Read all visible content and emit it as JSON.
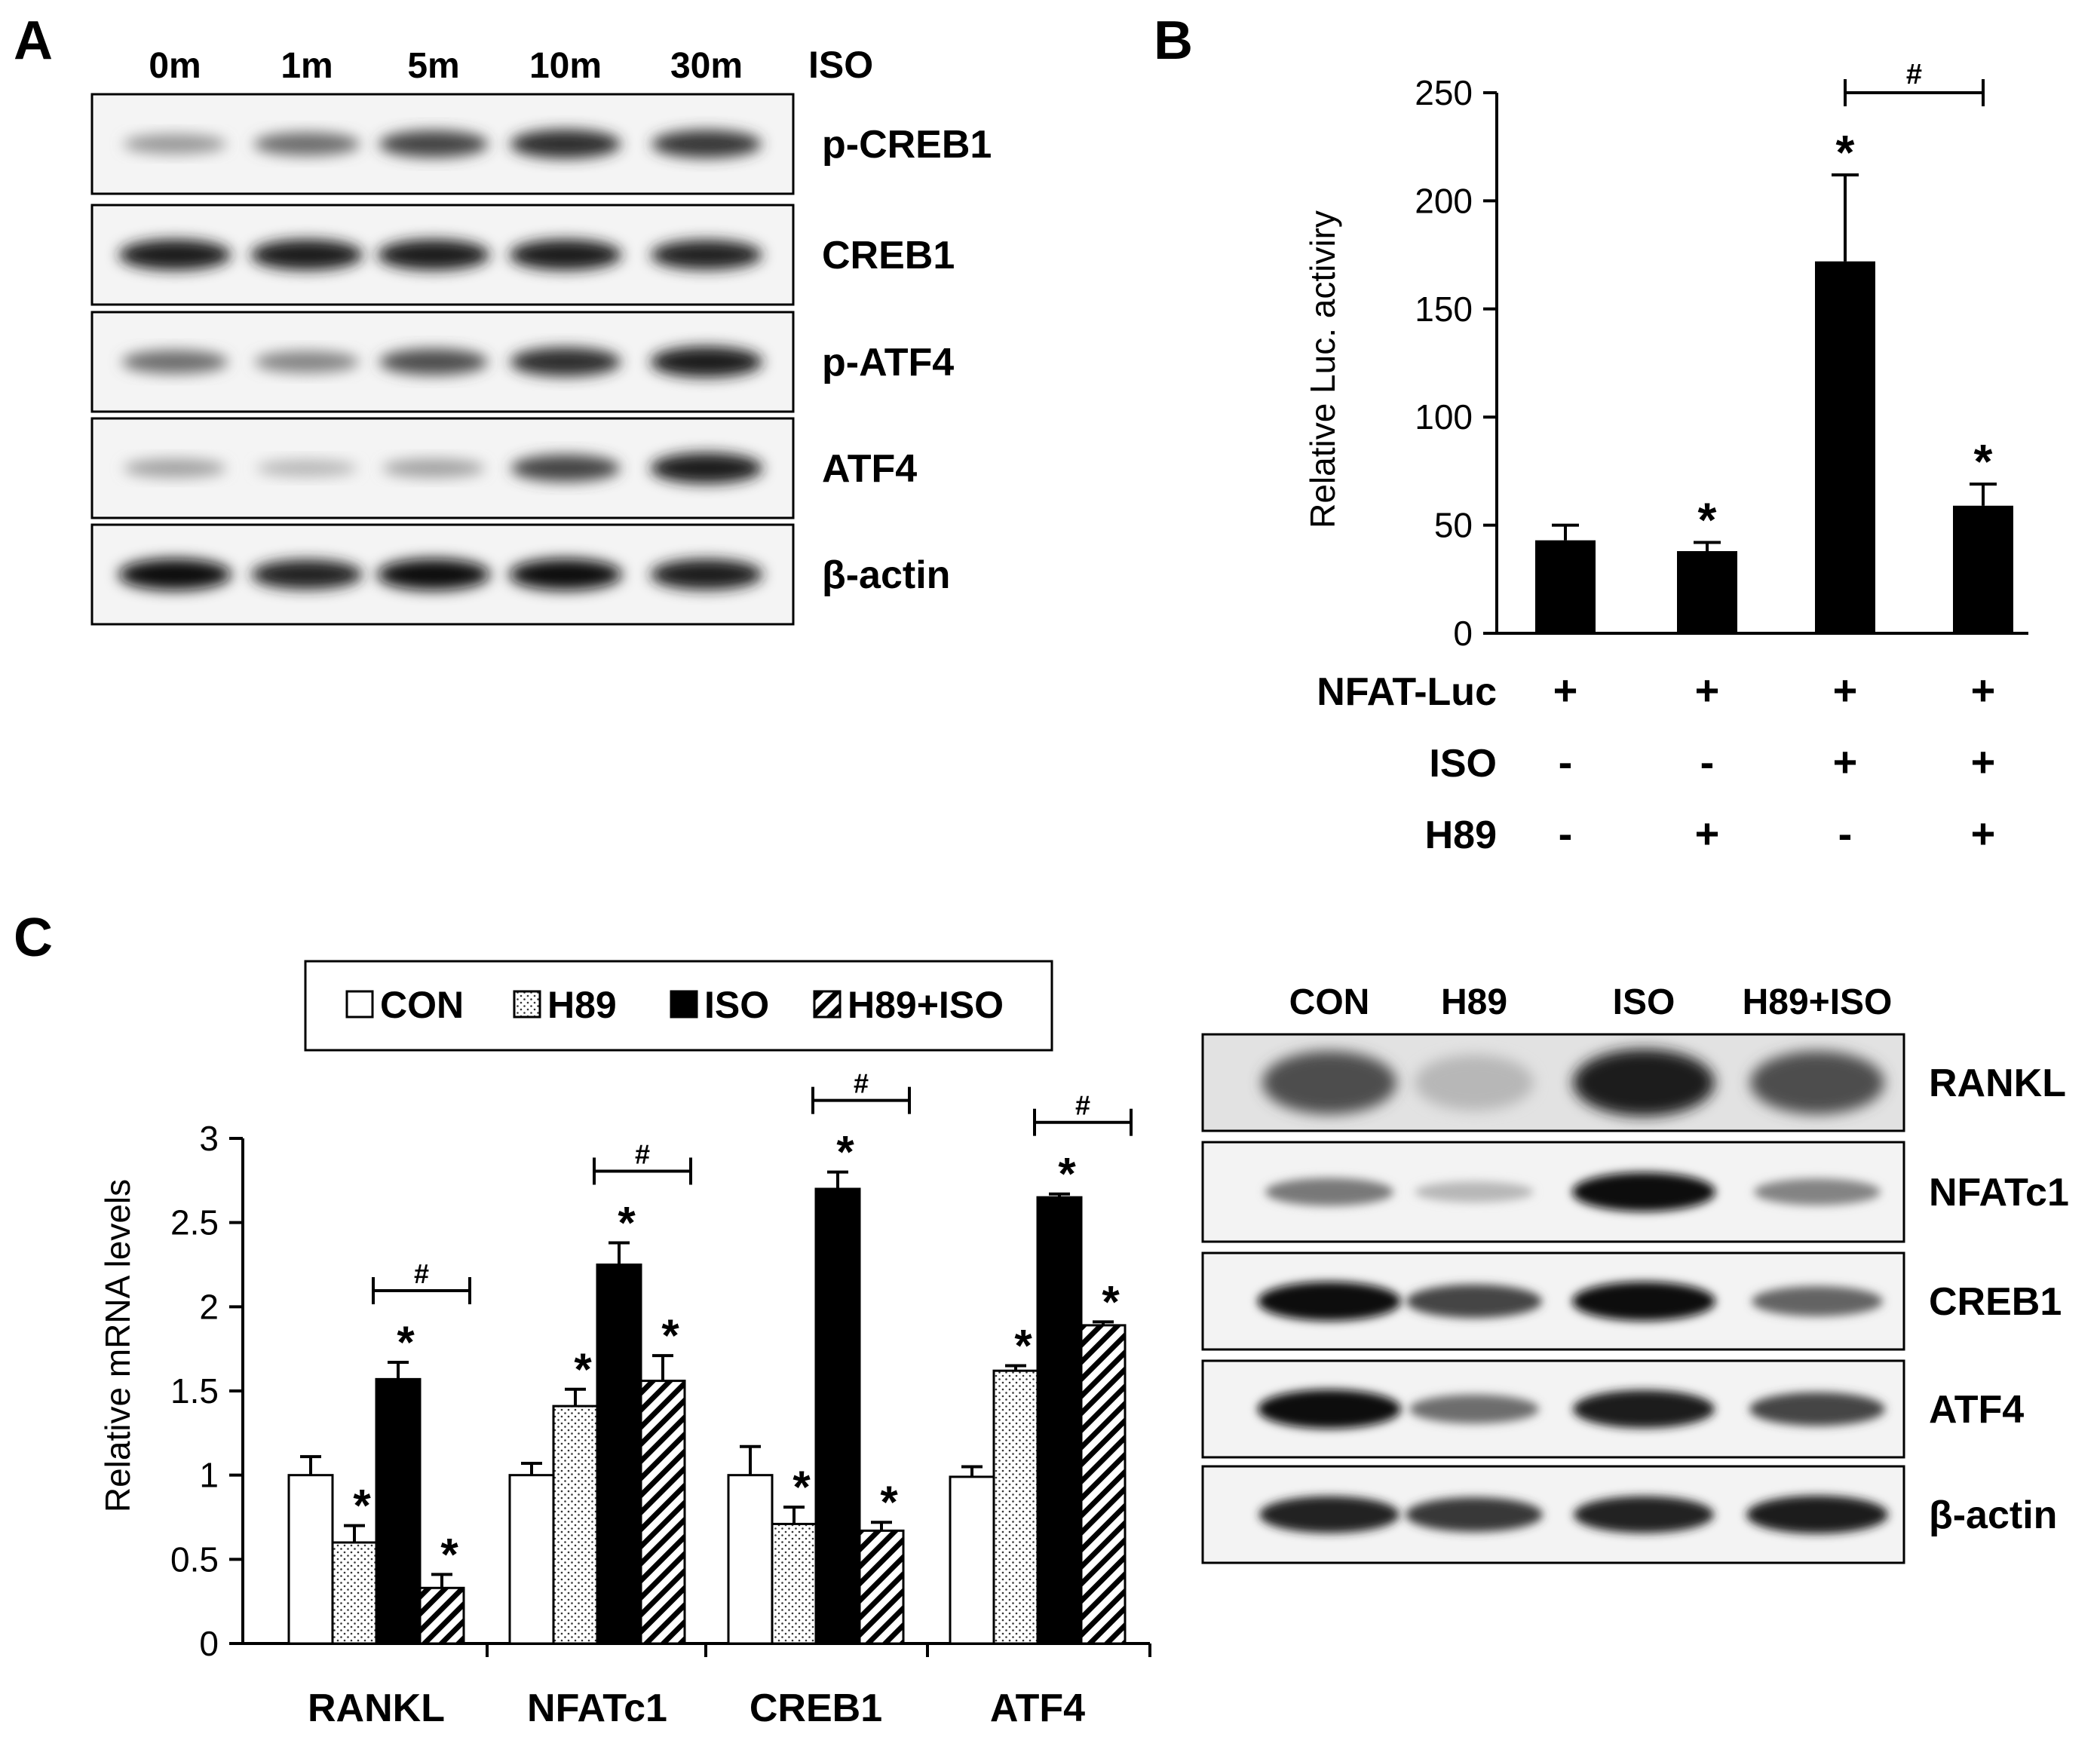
{
  "panels": {
    "a": {
      "letter": "A",
      "timepoints": [
        "0m",
        "1m",
        "5m",
        "10m",
        "30m"
      ],
      "treatment_label": "ISO",
      "blots": [
        {
          "label": "p-CREB1",
          "intensity": [
            0.35,
            0.55,
            0.75,
            0.85,
            0.8
          ]
        },
        {
          "label": "CREB1",
          "intensity": [
            0.95,
            0.95,
            0.95,
            0.95,
            0.9
          ]
        },
        {
          "label": "p-ATF4",
          "intensity": [
            0.55,
            0.45,
            0.7,
            0.85,
            0.95
          ]
        },
        {
          "label": "ATF4",
          "intensity": [
            0.3,
            0.2,
            0.3,
            0.75,
            0.95
          ]
        },
        {
          "label": "β-actin",
          "intensity": [
            1.0,
            0.9,
            1.0,
            1.0,
            0.95
          ]
        }
      ]
    },
    "b": {
      "letter": "B",
      "row_labels": [
        "NFAT-Luc",
        "ISO",
        "H89"
      ],
      "conditions": [
        [
          "+",
          "-",
          "-"
        ],
        [
          "+",
          "-",
          "+"
        ],
        [
          "+",
          "+",
          "-"
        ],
        [
          "+",
          "+",
          "+"
        ]
      ]
    },
    "c": {
      "letter": "C",
      "blot_headers": [
        "CON",
        "H89",
        "ISO",
        "H89+ISO"
      ],
      "blots": [
        {
          "label": "RANKL",
          "intensity": [
            0.7,
            0.2,
            0.95,
            0.7
          ]
        },
        {
          "label": "NFATc1",
          "intensity": [
            0.5,
            0.2,
            1.0,
            0.45
          ]
        },
        {
          "label": "CREB1",
          "intensity": [
            1.0,
            0.75,
            1.0,
            0.6
          ]
        },
        {
          "label": "ATF4",
          "intensity": [
            1.0,
            0.55,
            0.95,
            0.75
          ]
        },
        {
          "label": "β-actin",
          "intensity": [
            0.9,
            0.8,
            0.9,
            0.95
          ]
        }
      ]
    }
  },
  "chart_data": [
    {
      "type": "bar",
      "panel": "B",
      "ylabel": "Relative Luc. activiry",
      "ylim": [
        0,
        250
      ],
      "yticks": [
        "0",
        "50",
        "100",
        "150",
        "200",
        "250"
      ],
      "values": [
        43,
        38,
        172,
        59
      ],
      "errors": [
        7,
        4,
        40,
        10
      ],
      "significance": [
        "",
        "*",
        "*",
        "*"
      ],
      "brackets": [
        {
          "from": 2,
          "to": 3,
          "label": "#"
        }
      ],
      "bar_color": "#000000"
    },
    {
      "type": "bar",
      "panel": "C",
      "ylabel": "Relative mRNA levels",
      "ylim": [
        0,
        3
      ],
      "yticks": [
        "0",
        "0.5",
        "1",
        "1.5",
        "2",
        "2.5",
        "3"
      ],
      "categories": [
        "RANKL",
        "NFATc1",
        "CREB1",
        "ATF4"
      ],
      "legend_position": "top",
      "series": [
        {
          "name": "CON",
          "pattern": "open",
          "values": [
            1.0,
            1.0,
            1.0,
            0.99
          ],
          "errors": [
            0.11,
            0.07,
            0.17,
            0.06
          ],
          "significance": [
            "",
            "",
            "",
            ""
          ]
        },
        {
          "name": "H89",
          "pattern": "dotted",
          "values": [
            0.6,
            1.41,
            0.71,
            1.62
          ],
          "errors": [
            0.1,
            0.1,
            0.1,
            0.03
          ],
          "significance": [
            "*",
            "*",
            "*",
            "*"
          ]
        },
        {
          "name": "ISO",
          "pattern": "solid",
          "values": [
            1.57,
            2.25,
            2.7,
            2.65
          ],
          "errors": [
            0.1,
            0.13,
            0.1,
            0.02
          ],
          "significance": [
            "*",
            "*",
            "*",
            "*"
          ]
        },
        {
          "name": "H89+ISO",
          "pattern": "hatched",
          "values": [
            0.33,
            1.56,
            0.67,
            1.89
          ],
          "errors": [
            0.08,
            0.15,
            0.05,
            0.02
          ],
          "significance": [
            "*",
            "*",
            "*",
            "*"
          ]
        }
      ],
      "brackets": [
        {
          "category": 0,
          "label": "#"
        },
        {
          "category": 1,
          "label": "#"
        },
        {
          "category": 2,
          "label": "#"
        },
        {
          "category": 3,
          "label": "#"
        }
      ]
    }
  ]
}
